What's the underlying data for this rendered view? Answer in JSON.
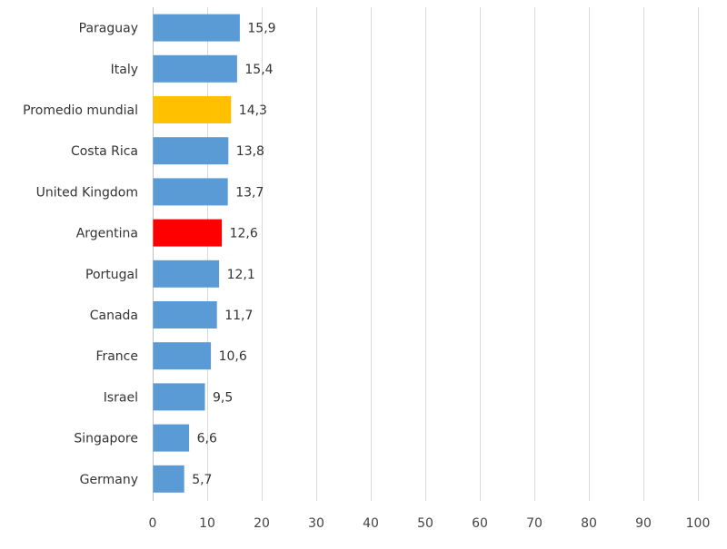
{
  "chart_data": {
    "type": "bar",
    "orientation": "horizontal",
    "categories": [
      "Paraguay",
      "Italy",
      "Promedio mundial",
      "Costa Rica",
      "United Kingdom",
      "Argentina",
      "Portugal",
      "Canada",
      "France",
      "Israel",
      "Singapore",
      "Germany"
    ],
    "values": [
      15.9,
      15.4,
      14.3,
      13.8,
      13.7,
      12.6,
      12.1,
      11.7,
      10.6,
      9.5,
      6.6,
      5.7
    ],
    "value_labels": [
      "15,9",
      "15,4",
      "14,3",
      "13,8",
      "13,7",
      "12,6",
      "12,1",
      "11,7",
      "10,6",
      "9,5",
      "6,6",
      "5,7"
    ],
    "bar_colors": [
      "#5b9bd5",
      "#5b9bd5",
      "#ffc000",
      "#5b9bd5",
      "#5b9bd5",
      "#ff0000",
      "#5b9bd5",
      "#5b9bd5",
      "#5b9bd5",
      "#5b9bd5",
      "#5b9bd5",
      "#5b9bd5"
    ],
    "xlim": [
      0,
      100
    ],
    "xticks": [
      0,
      10,
      20,
      30,
      40,
      50,
      60,
      70,
      80,
      90,
      100
    ],
    "grid": "vertical",
    "title": "",
    "xlabel": "",
    "ylabel": "",
    "legend": "none"
  }
}
